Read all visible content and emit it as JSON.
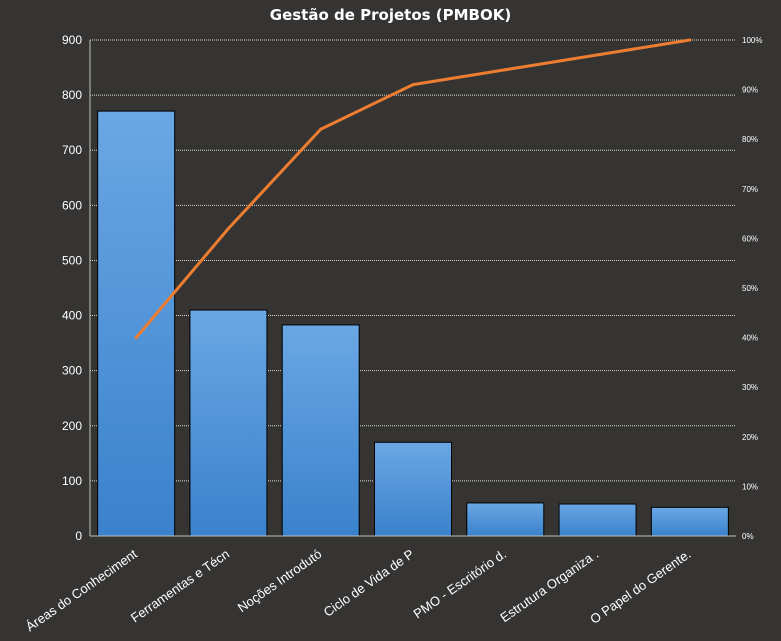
{
  "chart_data": {
    "type": "bar",
    "title": "Gestão de Projetos (PMBOK)",
    "xlabel": "",
    "ylabel": "",
    "categories": [
      "Áreas do Conheciment",
      "Ferramentas e Técn",
      "Noções Introdutó",
      "Ciclo de Vida de P",
      "PMO - Escritório d.",
      "Estrutura Organiza .",
      "O Papel do Gerente."
    ],
    "values": [
      771,
      410,
      383,
      170,
      60,
      58,
      52
    ],
    "cumulative_percent": [
      40,
      62,
      82,
      91,
      94,
      97,
      100
    ],
    "ylim": [
      0,
      900
    ],
    "y_ticks": [
      "0",
      "100",
      "200",
      "300",
      "400",
      "500",
      "600",
      "700",
      "800",
      "900"
    ],
    "y2lim": [
      0,
      100
    ],
    "y2_ticks": [
      "0%",
      "10%",
      "20%",
      "30%",
      "40%",
      "50%",
      "60%",
      "70%",
      "80%",
      "90%",
      "100%"
    ],
    "grid": true,
    "legend": "none",
    "colors": {
      "background": "#353433",
      "bar_top": "#6aa7e4",
      "bar_bottom": "#3a82cc",
      "bar_border": "#000000",
      "line": "#ed7d31",
      "grid": "#d9d9d9",
      "text": "#ffffff"
    }
  }
}
